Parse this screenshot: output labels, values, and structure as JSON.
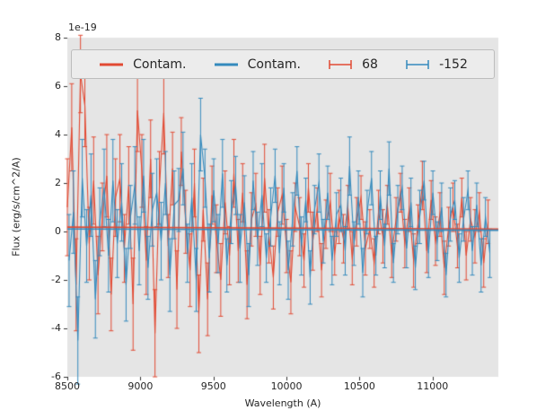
{
  "figure": {
    "background": "#ffffff",
    "plot_background": "#e5e5e5",
    "tick_color": "#333333",
    "text_color": "#262626"
  },
  "chart_data": {
    "type": "line",
    "subtype": "errorbar",
    "title": "",
    "xlabel": "Wavelength (A)",
    "ylabel": "Flux (erg/s/cm^2/A)",
    "offset_text": "1e-19",
    "y_unit_scale": "1e-19",
    "xlim": [
      8500,
      11450
    ],
    "ylim": [
      -6,
      8
    ],
    "x_ticks": [
      8500,
      9000,
      9500,
      10000,
      10500,
      11000
    ],
    "y_ticks": [
      -6,
      -4,
      -2,
      0,
      2,
      4,
      6,
      8
    ],
    "grid": false,
    "legend": {
      "position": "upper center",
      "ncol": 4,
      "items": [
        {
          "label": "Contam.",
          "color": "#e24a33",
          "glyph": "line"
        },
        {
          "label": "Contam.",
          "color": "#348abd",
          "glyph": "line"
        },
        {
          "label": "68",
          "color": "#e24a33",
          "glyph": "errorbar"
        },
        {
          "label": "-152",
          "color": "#348abd",
          "glyph": "errorbar"
        }
      ]
    },
    "series": [
      {
        "name": "Contam. (red)",
        "kind": "line",
        "color": "#e24a33",
        "linewidth": 1.6,
        "x": [
          8500,
          11450
        ],
        "y": [
          0.18,
          0.1
        ]
      },
      {
        "name": "Contam. (blue)",
        "kind": "line",
        "color": "#348abd",
        "linewidth": 1.6,
        "x": [
          8500,
          11450
        ],
        "y": [
          0.1,
          0.05
        ]
      },
      {
        "name": "68",
        "kind": "errorbar",
        "color": "#e24a33",
        "x_start": 8500,
        "x_step": 30,
        "y": [
          1.0,
          4.3,
          -2.2,
          6.5,
          5.2,
          -0.5,
          2.1,
          -1.8,
          0.6,
          2.3,
          -2.6,
          1.4,
          2.2,
          -0.7,
          1.9,
          -3.0,
          5.0,
          2.5,
          -1.2,
          3.0,
          -4.2,
          1.8,
          4.9,
          -0.6,
          2.6,
          -2.4,
          3.3,
          0.4,
          -1.6,
          2.0,
          -3.4,
          0.9,
          -2.8,
          1.5,
          -0.3,
          -2.0,
          1.2,
          -1.0,
          2.4,
          -0.8,
          1.6,
          -2.2,
          0.5,
          1.1,
          -1.4,
          2.2,
          -0.2,
          -1.9,
          0.8,
          1.5,
          -0.6,
          -2.1,
          1.0,
          0.2,
          -1.2,
          1.8,
          -0.4,
          0.9,
          -1.6,
          0.3,
          1.2,
          -0.9,
          0.6,
          -0.3,
          1.0,
          -1.1,
          0.4,
          1.4,
          -0.7,
          0.1,
          -1.3,
          0.8,
          -0.2,
          1.1,
          -0.9,
          0.5,
          1.6,
          -0.5,
          0.9,
          -1.2,
          0.3,
          1.9,
          -0.8,
          1.3,
          -0.4,
          0.7,
          -1.5,
          0.2,
          1.0,
          -0.6,
          1.4,
          -1.0,
          0.5,
          -0.2,
          0.8,
          -1.3,
          0.4
        ],
        "yerr": [
          2.0,
          1.8,
          1.9,
          1.6,
          1.7,
          1.5,
          1.8,
          1.6,
          1.4,
          1.7,
          1.5,
          1.6,
          1.8,
          1.4,
          1.6,
          1.9,
          1.7,
          1.5,
          1.4,
          1.6,
          1.8,
          1.5,
          1.7,
          1.3,
          1.5,
          1.6,
          1.4,
          1.3,
          1.5,
          1.4,
          1.6,
          1.3,
          1.5,
          1.2,
          1.4,
          1.5,
          1.3,
          1.2,
          1.4,
          1.3,
          1.2,
          1.4,
          1.1,
          1.3,
          1.2,
          1.4,
          1.1,
          1.3,
          1.0,
          1.2,
          1.1,
          1.3,
          1.0,
          1.2,
          1.1,
          1.0,
          1.2,
          0.9,
          1.1,
          1.0,
          1.2,
          0.9,
          1.1,
          1.0,
          0.9,
          1.1,
          1.0,
          0.9,
          1.1,
          0.8,
          1.0,
          0.9,
          1.1,
          0.8,
          1.0,
          0.9,
          0.8,
          1.0,
          0.9,
          1.1,
          0.8,
          1.0,
          0.9,
          0.8,
          1.0,
          0.9,
          1.1,
          0.8,
          1.0,
          0.9,
          0.8,
          1.0,
          0.9,
          1.1,
          0.8,
          1.0,
          0.9
        ]
      },
      {
        "name": "-152",
        "kind": "errorbar",
        "color": "#348abd",
        "x_start": 8512,
        "x_step": 30,
        "y": [
          -1.2,
          0.8,
          -4.5,
          2.2,
          -0.6,
          1.5,
          -2.8,
          0.4,
          1.8,
          -1.0,
          2.1,
          -0.5,
          1.2,
          -2.2,
          0.6,
          1.9,
          -0.8,
          2.3,
          -1.5,
          0.9,
          1.6,
          -0.4,
          2.0,
          -1.8,
          1.1,
          1.3,
          2.6,
          -0.9,
          1.4,
          -2.0,
          4.0,
          2.2,
          -1.1,
          1.7,
          -0.5,
          2.4,
          -1.4,
          0.8,
          1.9,
          -0.7,
          1.2,
          -1.8,
          2.1,
          -0.3,
          1.5,
          -1.1,
          0.6,
          2.3,
          -0.9,
          1.8,
          -1.6,
          0.5,
          2.5,
          -0.6,
          1.3,
          -1.9,
          0.9,
          2.0,
          -0.4,
          1.6,
          -1.2,
          0.7,
          1.1,
          -0.8,
          2.7,
          -0.5,
          1.4,
          -1.7,
          0.8,
          2.2,
          -1.0,
          1.5,
          -0.6,
          2.6,
          -1.3,
          0.9,
          1.8,
          -0.7,
          1.2,
          -1.5,
          0.6,
          2.1,
          -0.9,
          1.6,
          -0.4,
          1.0,
          -1.8,
          0.7,
          1.3,
          -1.1,
          0.5,
          1.7,
          -0.8,
          1.1,
          -1.4,
          0.6,
          -0.9
        ],
        "yerr": [
          1.9,
          1.7,
          1.8,
          1.6,
          1.5,
          1.7,
          1.6,
          1.4,
          1.6,
          1.5,
          1.7,
          1.4,
          1.6,
          1.5,
          1.3,
          1.6,
          1.4,
          1.5,
          1.3,
          1.5,
          1.4,
          1.6,
          1.3,
          1.5,
          1.4,
          1.3,
          1.5,
          1.2,
          1.4,
          1.3,
          1.5,
          1.2,
          1.4,
          1.3,
          1.2,
          1.4,
          1.1,
          1.3,
          1.2,
          1.4,
          1.1,
          1.3,
          1.2,
          1.1,
          1.3,
          1.0,
          1.2,
          1.1,
          1.3,
          1.0,
          1.2,
          1.1,
          1.0,
          1.2,
          0.9,
          1.1,
          1.0,
          1.2,
          0.9,
          1.1,
          1.0,
          0.9,
          1.1,
          1.0,
          1.2,
          0.9,
          1.1,
          1.0,
          0.9,
          1.1,
          0.8,
          1.0,
          0.9,
          1.1,
          0.8,
          1.0,
          0.9,
          0.8,
          1.0,
          0.9,
          1.1,
          0.8,
          1.0,
          0.9,
          0.8,
          1.0,
          0.9,
          1.1,
          0.8,
          1.0,
          0.9,
          0.8,
          1.0,
          0.9,
          1.1,
          0.8,
          1.0
        ]
      }
    ]
  }
}
